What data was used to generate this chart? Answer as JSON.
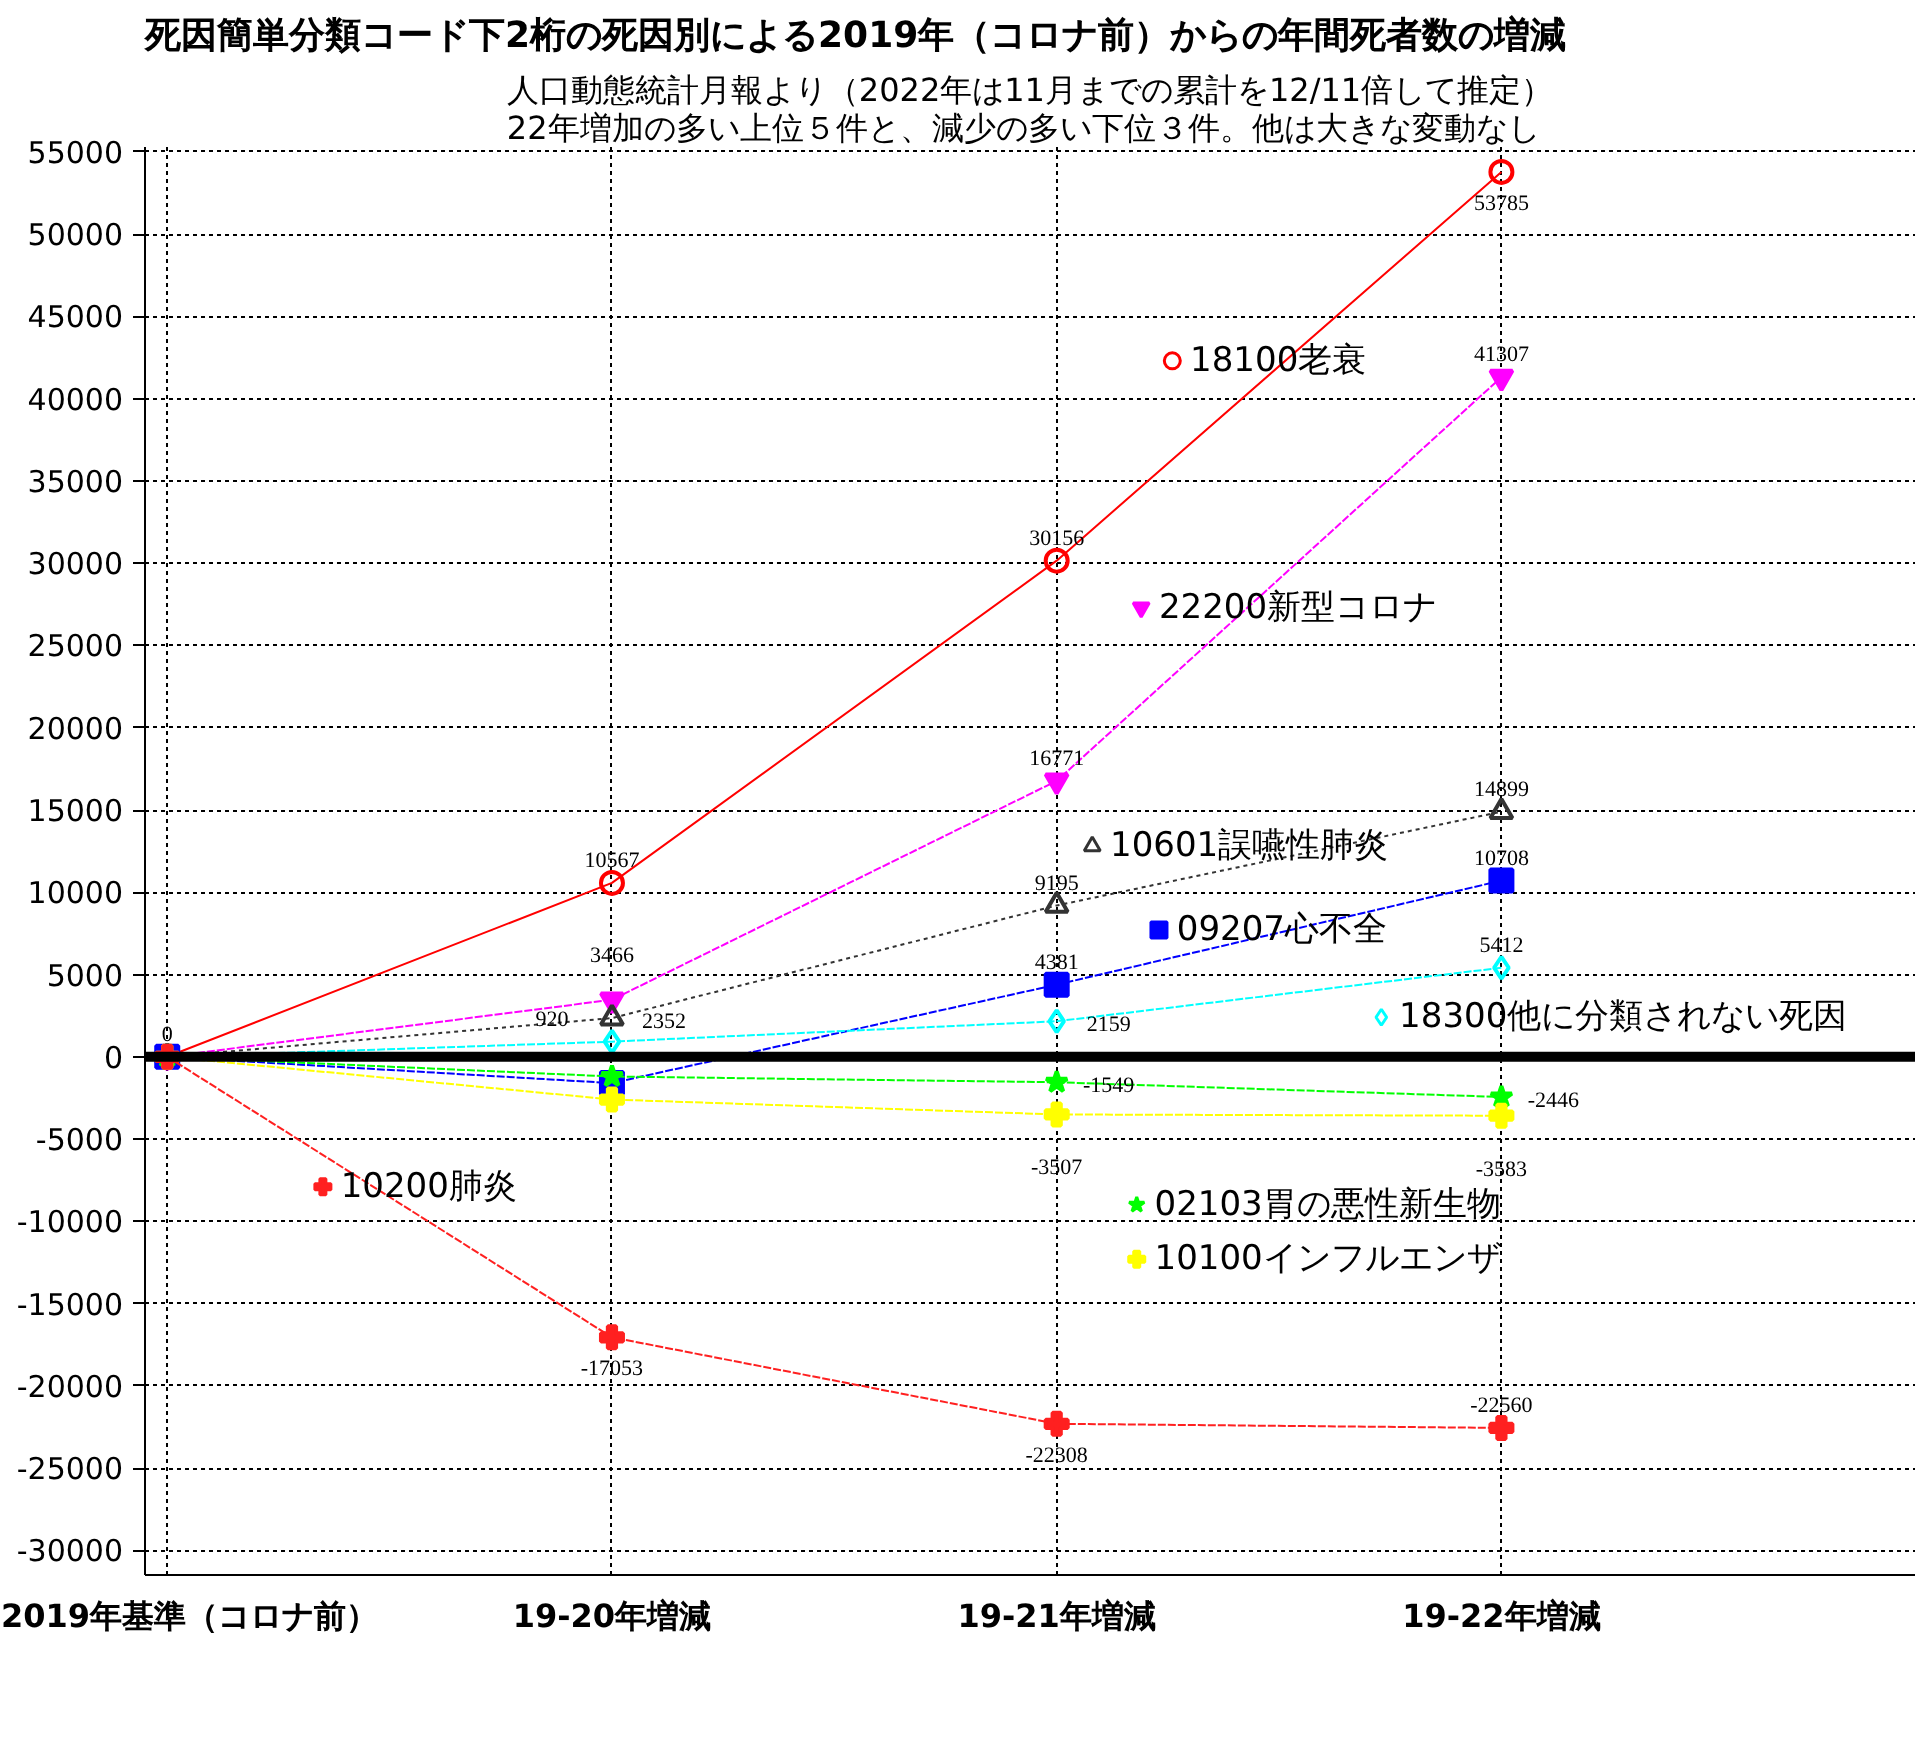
{
  "chart_data": {
    "type": "line",
    "title": "死因簡単分類コード下2桁の死因別による2019年（コロナ前）からの年間死者数の増減",
    "subtitle": "人口動態統計月報より（2022年は11月までの累計を12/11倍して推定）\n22年増加の多い上位５件と、減少の多い下位３件。他は大きな変動なし",
    "categories": [
      "2019年基準（コロナ前）",
      "19-20年増減",
      "19-21年増減",
      "19-22年増減"
    ],
    "series": [
      {
        "name": "18100老衰",
        "color": "#ff0000",
        "values": [
          0,
          10567,
          30156,
          53785
        ],
        "value_labels": [
          "0",
          "10567",
          "30156",
          "53785"
        ],
        "marker": "circle",
        "line_style": "solid"
      },
      {
        "name": "22200新型コロナ",
        "color": "#ff00ff",
        "values": [
          0,
          3466,
          16771,
          41307
        ],
        "value_labels": [
          null,
          "3466",
          "16771",
          "41307"
        ],
        "marker": "triangle",
        "line_style": "dashed"
      },
      {
        "name": "10601誤嚥性肺炎",
        "color": "#333333",
        "values": [
          0,
          2352,
          9195,
          14899
        ],
        "value_labels": [
          null,
          "2352",
          "9195",
          "14899"
        ],
        "marker": "triangle",
        "line_style": "dotted"
      },
      {
        "name": "09207心不全",
        "color": "#0000ff",
        "values": [
          0,
          -1600,
          4381,
          10708
        ],
        "value_labels": [
          null,
          null,
          "4381",
          "10708"
        ],
        "marker": "square",
        "line_style": "dashed"
      },
      {
        "name": "18300他に分類されない死因",
        "color": "#00ffff",
        "values": [
          0,
          920,
          2159,
          5412
        ],
        "value_labels": [
          null,
          "920",
          "2159",
          "5412"
        ],
        "marker": "diamond",
        "line_style": "dashed"
      },
      {
        "name": "02103胃の悪性新生物",
        "color": "#00ff00",
        "values": [
          0,
          -1200,
          -1549,
          -2446
        ],
        "value_labels": [
          null,
          null,
          "-1549",
          "-2446"
        ],
        "marker": "star",
        "line_style": "dashed"
      },
      {
        "name": "10100インフルエンザ",
        "color": "#ffff00",
        "values": [
          0,
          -2600,
          -3507,
          -3583
        ],
        "value_labels": [
          null,
          null,
          "-3507",
          "-3583"
        ],
        "marker": "cross",
        "line_style": "dashed"
      },
      {
        "name": "10200肺炎",
        "color": "#ff2020",
        "values": [
          0,
          -17053,
          -22308,
          -22560
        ],
        "value_labels": [
          null,
          "-17053",
          "-22308",
          "-22560"
        ],
        "marker": "cross",
        "line_style": "dashed"
      }
    ],
    "ylim": [
      -31500,
      55300
    ],
    "yticks": [
      -30000,
      -25000,
      -20000,
      -15000,
      -10000,
      -5000,
      0,
      5000,
      10000,
      15000,
      20000,
      25000,
      30000,
      35000,
      40000,
      45000,
      50000,
      55000
    ],
    "grid": true,
    "legend": "right",
    "ref_lines": [
      {
        "axis": "y",
        "value": 0,
        "color": "#000000"
      }
    ]
  }
}
